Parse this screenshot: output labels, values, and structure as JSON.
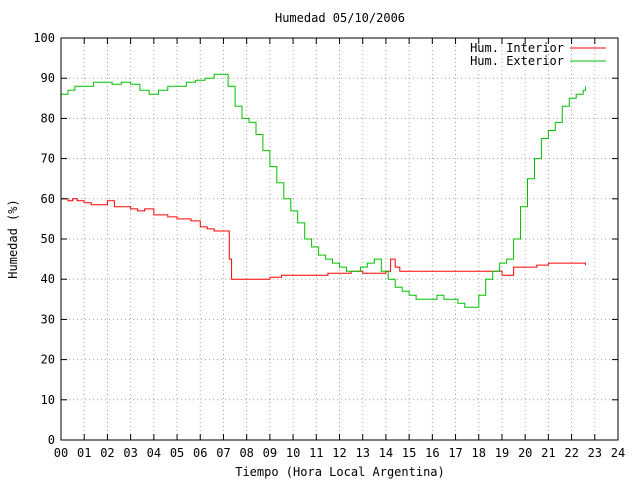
{
  "chart_data": {
    "type": "line",
    "title": "Humedad 05/10/2006",
    "xlabel": "Tiempo (Hora Local Argentina)",
    "ylabel": "Humedad (%)",
    "xlim": [
      0,
      24
    ],
    "ylim": [
      0,
      100
    ],
    "grid": true,
    "legend_position": "top-right",
    "x_ticks": [
      "00",
      "01",
      "02",
      "03",
      "04",
      "05",
      "06",
      "07",
      "08",
      "09",
      "10",
      "11",
      "12",
      "13",
      "14",
      "15",
      "16",
      "17",
      "18",
      "19",
      "20",
      "21",
      "22",
      "23",
      "24"
    ],
    "y_ticks": [
      "0",
      "10",
      "20",
      "30",
      "40",
      "50",
      "60",
      "70",
      "80",
      "90",
      "100"
    ],
    "series": [
      {
        "name": "Hum. Interior",
        "color": "#ff0000",
        "x": [
          0,
          0.3,
          0.5,
          0.7,
          1.0,
          1.3,
          1.6,
          2.0,
          2.3,
          2.6,
          3.0,
          3.3,
          3.6,
          4.0,
          4.3,
          4.6,
          5.0,
          5.3,
          5.6,
          6.0,
          6.3,
          6.6,
          6.9,
          7.15,
          7.25,
          7.35,
          7.6,
          8.0,
          8.5,
          9.0,
          9.5,
          10.0,
          10.5,
          11.0,
          11.5,
          12.0,
          12.5,
          13.0,
          13.5,
          14.0,
          14.2,
          14.4,
          14.6,
          14.8,
          15.0,
          15.5,
          16.0,
          16.5,
          17.0,
          17.5,
          18.0,
          18.5,
          19.0,
          19.5,
          20.0,
          20.5,
          21.0,
          21.5,
          22.0,
          22.5,
          22.6
        ],
        "y": [
          60,
          59.5,
          60,
          59.5,
          59,
          58.5,
          58.5,
          59.5,
          58,
          58,
          57.5,
          57,
          57.5,
          56,
          56,
          55.5,
          55,
          55,
          54.5,
          53,
          52.5,
          52,
          52,
          52,
          45,
          40,
          40,
          40,
          40,
          40.5,
          41,
          41,
          41,
          41,
          41.5,
          41.5,
          42,
          41.5,
          41.5,
          42,
          45,
          43,
          42,
          42,
          42,
          42,
          42,
          42,
          42,
          42,
          42,
          42,
          41,
          43,
          43,
          43.5,
          44,
          44,
          44,
          44,
          43.5
        ]
      },
      {
        "name": "Hum. Exterior",
        "color": "#00c000",
        "x": [
          0,
          0.3,
          0.6,
          1.0,
          1.4,
          1.8,
          2.2,
          2.6,
          3.0,
          3.4,
          3.8,
          4.2,
          4.6,
          5.0,
          5.4,
          5.8,
          6.2,
          6.6,
          7.0,
          7.2,
          7.5,
          7.8,
          8.1,
          8.4,
          8.7,
          9.0,
          9.3,
          9.6,
          9.9,
          10.2,
          10.5,
          10.8,
          11.1,
          11.4,
          11.7,
          12.0,
          12.3,
          12.6,
          12.9,
          13.2,
          13.5,
          13.8,
          14.1,
          14.4,
          14.7,
          15.0,
          15.3,
          15.6,
          15.9,
          16.2,
          16.5,
          16.8,
          17.1,
          17.4,
          17.7,
          18.0,
          18.3,
          18.6,
          18.9,
          19.2,
          19.5,
          19.8,
          20.1,
          20.4,
          20.7,
          21.0,
          21.3,
          21.6,
          21.9,
          22.2,
          22.5,
          22.6
        ],
        "y": [
          86,
          87,
          88,
          88,
          89,
          89,
          88.5,
          89,
          88.5,
          87,
          86,
          87,
          88,
          88,
          89,
          89.5,
          90,
          91,
          91,
          88,
          83,
          80,
          79,
          76,
          72,
          68,
          64,
          60,
          57,
          54,
          50,
          48,
          46,
          45,
          44,
          43,
          42,
          42,
          43,
          44,
          45,
          42,
          40,
          38,
          37,
          36,
          35,
          35,
          35,
          36,
          35,
          35,
          34,
          33,
          33,
          36,
          40,
          42,
          44,
          45,
          50,
          58,
          65,
          70,
          75,
          77,
          79,
          83,
          85,
          86,
          87,
          88
        ]
      }
    ]
  }
}
